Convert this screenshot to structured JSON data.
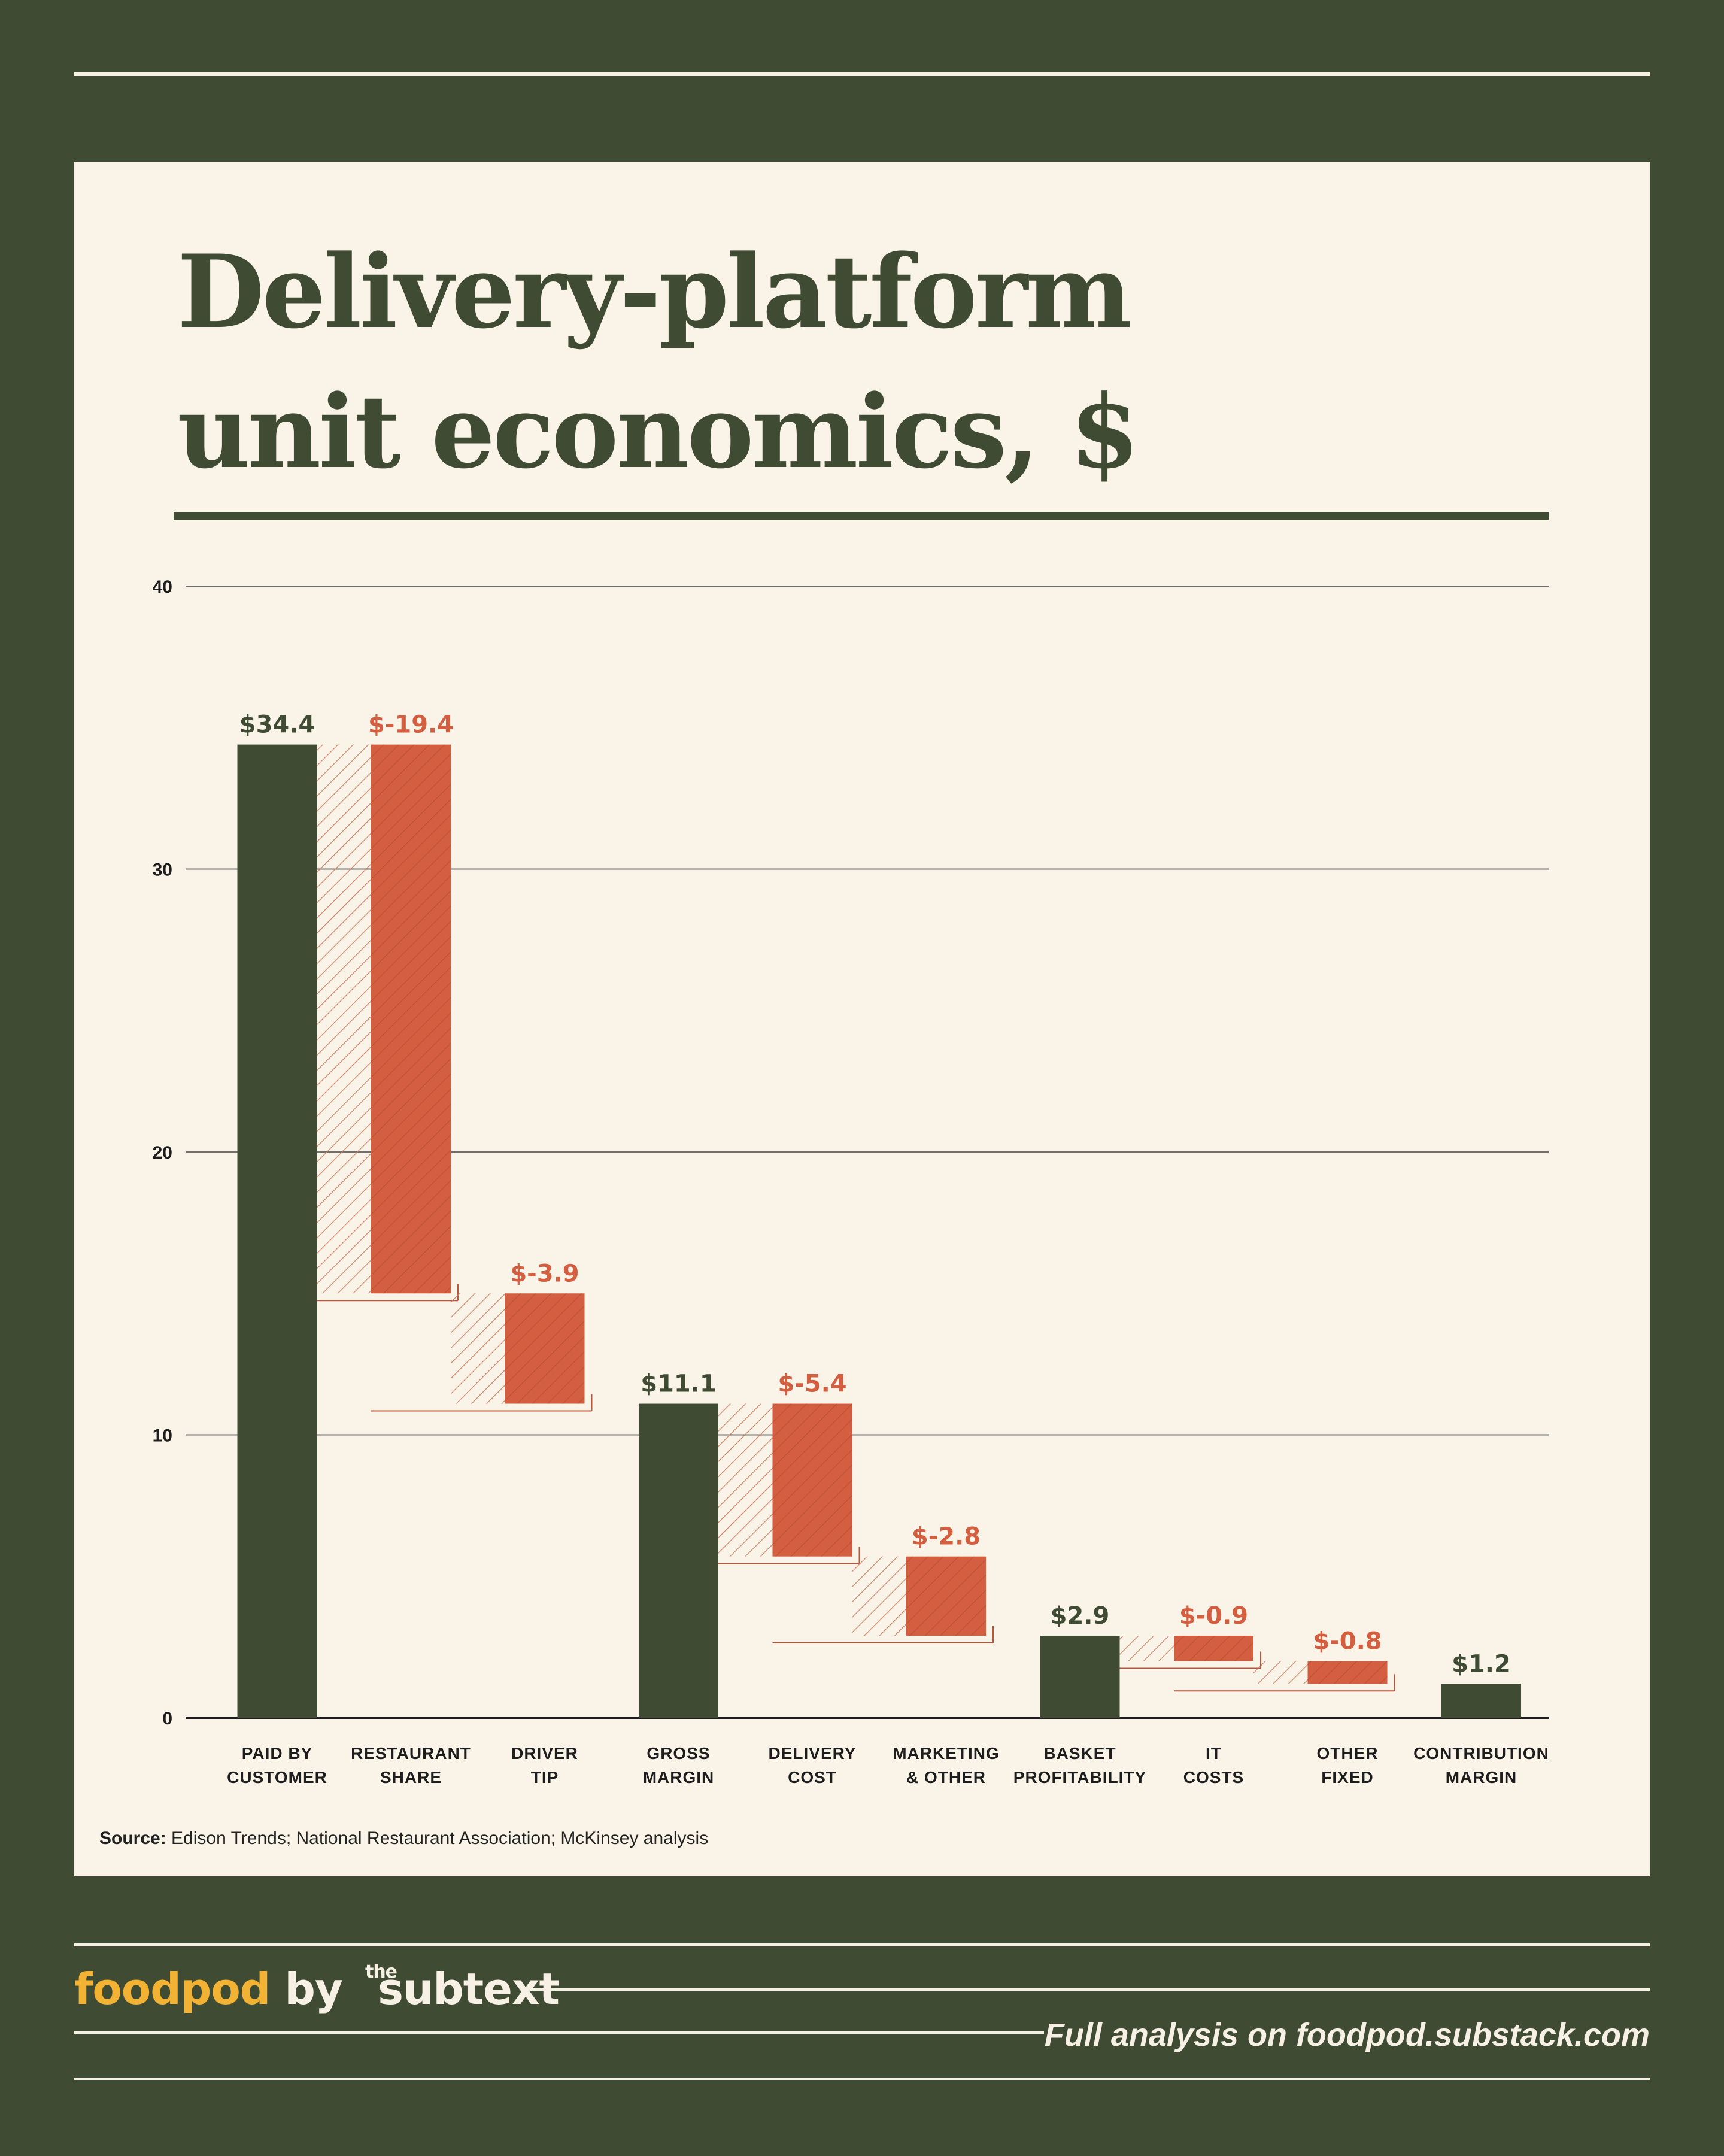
{
  "title": "Delivery-platform\nunit economics, $",
  "colors": {
    "frame": "#404b34",
    "panel": "#faf4e8",
    "total": "#404b34",
    "negative": "#d35f40",
    "brand": "#f2b233",
    "light": "#f6f1e4"
  },
  "source": {
    "label": "Source:",
    "text": "Edison Trends; National Restaurant Association; McKinsey analysis"
  },
  "footer": {
    "brand_food": "foodpod",
    "brand_by": "by",
    "brand_the": "the",
    "brand_sub": "subtext",
    "link": "Full analysis on foodpod.substack.com"
  },
  "chart_data": {
    "type": "bar",
    "subtype": "waterfall",
    "ylim": [
      0,
      40
    ],
    "yticks": [
      0,
      10,
      20,
      30,
      40
    ],
    "grid": true,
    "categories": [
      [
        "PAID BY",
        "CUSTOMER"
      ],
      [
        "RESTAURANT",
        "SHARE"
      ],
      [
        "DRIVER",
        "TIP"
      ],
      [
        "GROSS",
        "MARGIN"
      ],
      [
        "DELIVERY",
        "COST"
      ],
      [
        "MARKETING",
        "& OTHER"
      ],
      [
        "BASKET",
        "PROFITABILITY"
      ],
      [
        "IT",
        "COSTS"
      ],
      [
        "OTHER",
        "FIXED"
      ],
      [
        "CONTRIBUTION",
        "MARGIN"
      ]
    ],
    "values": [
      34.4,
      -19.4,
      -3.9,
      11.1,
      -5.4,
      -2.8,
      2.9,
      -0.9,
      -0.8,
      1.2
    ],
    "kinds": [
      "total",
      "delta",
      "delta",
      "total",
      "delta",
      "delta",
      "total",
      "delta",
      "delta",
      "total"
    ],
    "value_labels": [
      "$34.4",
      "$-19.4",
      "$-3.9",
      "$11.1",
      "$-5.4",
      "$-2.8",
      "$2.9",
      "$-0.9",
      "$-0.8",
      "$1.2"
    ]
  }
}
